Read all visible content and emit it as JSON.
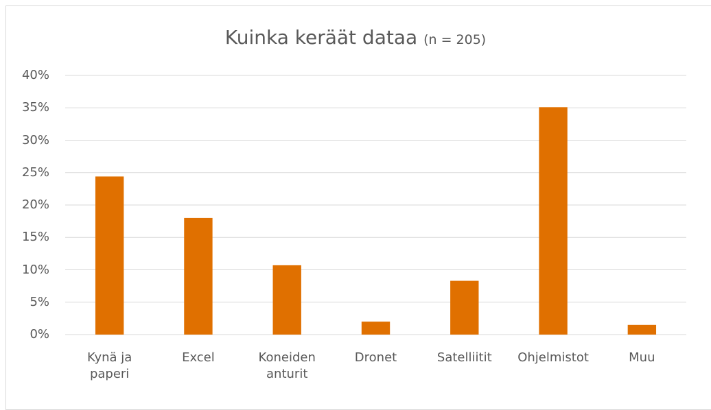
{
  "chart_data": {
    "type": "bar",
    "title": "Kuinka keräät dataa",
    "subtitle": "(n = 205)",
    "categories": [
      "Kynä ja paperi",
      "Excel",
      "Koneiden anturit",
      "Dronet",
      "Satelliitit",
      "Ohjelmistot",
      "Muu"
    ],
    "values": [
      24.4,
      18.0,
      10.7,
      2.0,
      8.3,
      35.1,
      1.5
    ],
    "color": "#e07000",
    "ylim": [
      0,
      40
    ],
    "yticks": [
      {
        "value": 0,
        "label": "0%"
      },
      {
        "value": 5,
        "label": "5%"
      },
      {
        "value": 10,
        "label": "10%"
      },
      {
        "value": 15,
        "label": "15%"
      },
      {
        "value": 20,
        "label": "20%"
      },
      {
        "value": 25,
        "label": "25%"
      },
      {
        "value": 30,
        "label": "30%"
      },
      {
        "value": 35,
        "label": "35%"
      },
      {
        "value": 40,
        "label": "40%"
      }
    ],
    "grid": true
  }
}
